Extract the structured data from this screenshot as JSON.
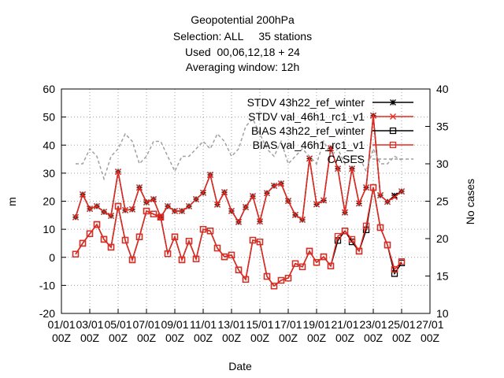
{
  "chart_data": {
    "type": "line",
    "title": [
      "Geopotential 200hPa",
      "Selection: ALL     35 stations",
      "Used  00,06,12,18 + 24",
      "Averaging window: 12h"
    ],
    "xlabel": "Date",
    "ylabel": "m",
    "y2label": "No cases",
    "x": [
      1,
      1.5,
      2,
      2.5,
      3,
      3.5,
      4,
      4.5,
      5,
      5.5,
      6,
      6.5,
      7,
      7.5,
      8,
      8.5,
      9,
      9.5,
      10,
      10.5,
      11,
      11.5,
      12,
      12.5,
      13,
      13.5,
      14,
      14.5,
      15,
      15.5,
      16,
      16.5,
      17,
      17.5,
      18,
      18.5,
      19,
      19.5,
      20,
      20.5,
      21,
      21.5,
      22,
      22.5,
      23,
      23.5,
      24
    ],
    "xlim": [
      0,
      26
    ],
    "xticks": [
      {
        "value": 0,
        "label": "01/01\n00Z"
      },
      {
        "value": 2,
        "label": "03/01\n00Z"
      },
      {
        "value": 4,
        "label": "05/01\n00Z"
      },
      {
        "value": 6,
        "label": "07/01\n00Z"
      },
      {
        "value": 8,
        "label": "09/01\n00Z"
      },
      {
        "value": 10,
        "label": "11/01\n00Z"
      },
      {
        "value": 12,
        "label": "13/01\n00Z"
      },
      {
        "value": 14,
        "label": "15/01\n00Z"
      },
      {
        "value": 16,
        "label": "17/01\n00Z"
      },
      {
        "value": 18,
        "label": "19/01\n00Z"
      },
      {
        "value": 20,
        "label": "21/01\n00Z"
      },
      {
        "value": 22,
        "label": "23/01\n00Z"
      },
      {
        "value": 24,
        "label": "25/01\n00Z"
      },
      {
        "value": 26,
        "label": "27/01\n00Z"
      }
    ],
    "ylim": [
      -20,
      60
    ],
    "yticks": [
      -20,
      -10,
      0,
      10,
      20,
      30,
      40,
      50,
      60
    ],
    "y2lim": [
      10,
      40
    ],
    "y2ticks": [
      10,
      15,
      20,
      25,
      30,
      35,
      40
    ],
    "grid": true,
    "legend": "upper right",
    "series": [
      {
        "name": "STDV 43h22_ref_winter",
        "color": "#000000",
        "marker": "star",
        "linestyle": "solid",
        "values": [
          14.3,
          22.4,
          17.3,
          18.2,
          16.2,
          14.8,
          30.5,
          16.8,
          17.1,
          24.9,
          19.6,
          20.7,
          14.3,
          18.2,
          16.5,
          16.5,
          18.2,
          20.7,
          23,
          29.4,
          18.8,
          23.2,
          16.5,
          12.6,
          17.9,
          21.8,
          12.8,
          22.9,
          25.5,
          26.3,
          20.1,
          15.1,
          13.4,
          35.2,
          18.9,
          20.3,
          38.9,
          31.6,
          16,
          31.6,
          19.2,
          24.9,
          50.5,
          22.1,
          19.8,
          22,
          23.5
        ]
      },
      {
        "name": "STDV val_46h1_rc1_v1",
        "color": "#e8281e",
        "marker": "x",
        "linestyle": "solid",
        "values": [
          14.3,
          22.4,
          17.3,
          18.2,
          16.2,
          14.8,
          30.5,
          16.8,
          17.1,
          24.9,
          19.6,
          20.7,
          14.3,
          18.2,
          16.5,
          16.5,
          18.2,
          20.7,
          23,
          29.4,
          18.8,
          23.2,
          16.5,
          12.6,
          17.9,
          21.8,
          12.8,
          22.9,
          25.5,
          26.3,
          20.1,
          15.1,
          13.4,
          35.2,
          18.9,
          20.3,
          38.9,
          31.6,
          16,
          31.6,
          19.2,
          24.9,
          50.5,
          22.1,
          19.8,
          21.5,
          23.5
        ]
      },
      {
        "name": "BIAS 43h22_ref_winter",
        "color": "#000000",
        "marker": "square",
        "linestyle": "solid",
        "values": [
          1.1,
          5,
          8.4,
          11.7,
          6.4,
          3.6,
          18.2,
          6.1,
          -0.9,
          7.3,
          16.5,
          15.4,
          14.3,
          1.3,
          7.3,
          -0.9,
          5.8,
          -0.6,
          10,
          9.4,
          3.3,
          0.2,
          0.8,
          -4.5,
          -7.9,
          6.1,
          5.5,
          -6.8,
          -10.2,
          -8.2,
          -7.4,
          -2.2,
          -3.4,
          2.2,
          -1.8,
          0.2,
          -3.1,
          6,
          9.4,
          5.5,
          2.2,
          9.8,
          24.9,
          10.6,
          4.4,
          -5.8,
          -2
        ]
      },
      {
        "name": "BIAS val_46h1_rc1_v1",
        "color": "#e8281e",
        "marker": "square",
        "linestyle": "solid",
        "values": [
          1.1,
          5,
          8.4,
          11.7,
          6.4,
          3.6,
          18.2,
          6.1,
          -0.9,
          7.3,
          16.5,
          15.4,
          14.3,
          1.3,
          7.3,
          -0.9,
          5.8,
          -0.6,
          10,
          9.4,
          3.3,
          0.2,
          0.8,
          -4.5,
          -7.9,
          6.1,
          5.5,
          -6.8,
          -10.2,
          -8.2,
          -7.4,
          -2.2,
          -3.4,
          2.2,
          -1.8,
          0.2,
          -3.1,
          7.5,
          9.4,
          6.4,
          2.2,
          11.2,
          24.9,
          10.6,
          4.4,
          -4.3,
          -1.5
        ]
      },
      {
        "name": "CASES",
        "color": "#a0a0a0",
        "marker": "none",
        "linestyle": "dashed",
        "axis": "y2",
        "values": [
          30,
          30,
          32,
          31,
          28,
          31,
          32,
          34,
          33,
          30,
          31,
          33,
          33,
          31,
          29,
          31,
          31,
          32,
          33,
          32,
          34,
          33,
          31,
          32,
          35,
          36,
          34,
          32,
          31,
          33,
          30,
          31,
          32,
          31,
          30,
          33,
          31,
          32,
          30,
          31,
          31,
          29,
          32,
          30,
          30,
          31,
          30.5
        ]
      }
    ]
  }
}
